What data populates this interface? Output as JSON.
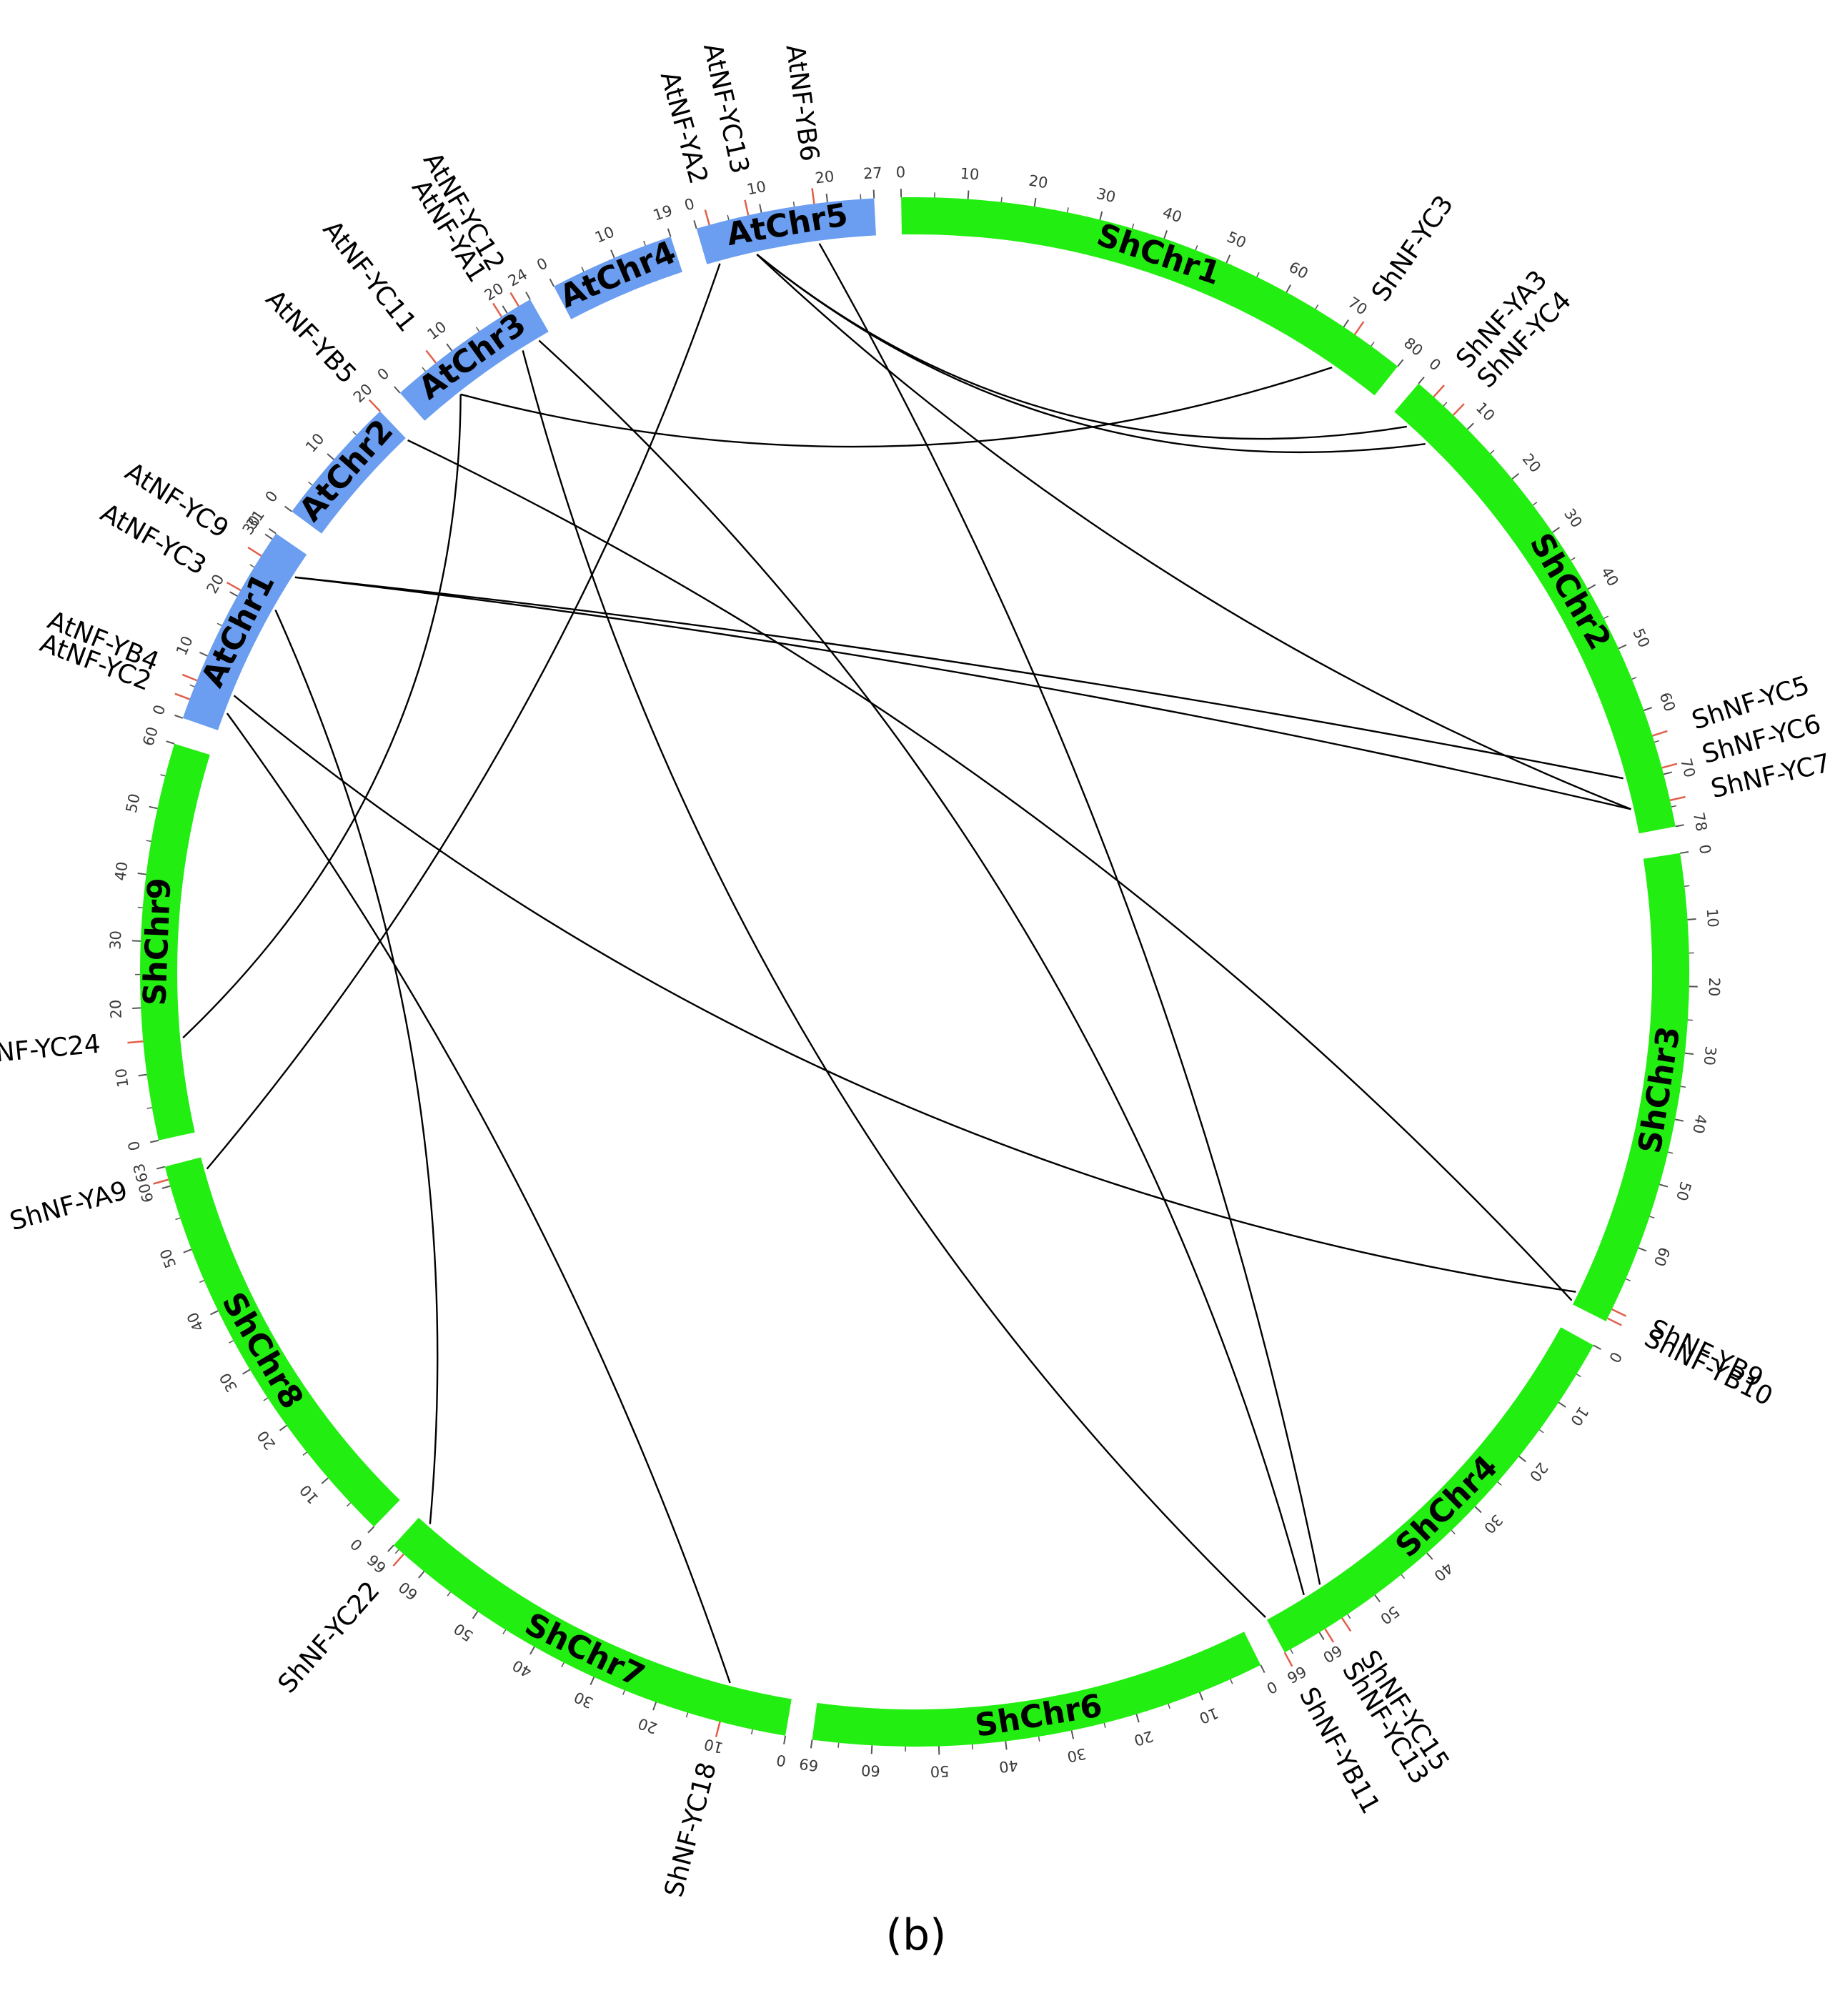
{
  "colors": {
    "sh": "#22ee11",
    "at": "#6b9ef0",
    "link": "#000000",
    "gene_tick": "#e0604a",
    "tick": "#555555"
  },
  "caption": "(b)",
  "chromosomes": [
    {
      "id": "ShChr1",
      "label": "ShChr1",
      "len": 80,
      "group": "sh",
      "ticks": [
        0,
        10,
        20,
        30,
        40,
        50,
        60,
        70,
        80
      ]
    },
    {
      "id": "ShChr2",
      "label": "ShChr2",
      "len": 78,
      "group": "sh",
      "ticks": [
        0,
        10,
        20,
        30,
        40,
        50,
        60,
        70,
        78
      ]
    },
    {
      "id": "ShChr3",
      "label": "ShChr3",
      "len": 72,
      "group": "sh",
      "ticks": [
        0,
        10,
        20,
        30,
        40,
        50,
        60
      ]
    },
    {
      "id": "ShChr4",
      "label": "ShChr4",
      "len": 66,
      "group": "sh",
      "ticks": [
        0,
        10,
        20,
        30,
        40,
        50,
        60,
        66
      ]
    },
    {
      "id": "ShChr6",
      "label": "ShChr6",
      "len": 69,
      "group": "sh",
      "ticks": [
        0,
        10,
        20,
        30,
        40,
        50,
        60,
        69
      ]
    },
    {
      "id": "ShChr7",
      "label": "ShChr7",
      "len": 66,
      "group": "sh",
      "ticks": [
        0,
        10,
        20,
        30,
        40,
        50,
        60,
        66
      ]
    },
    {
      "id": "ShChr8",
      "label": "ShChr8",
      "len": 63,
      "group": "sh",
      "ticks": [
        0,
        10,
        20,
        30,
        40,
        50,
        60,
        63
      ]
    },
    {
      "id": "ShChr9",
      "label": "ShChr9",
      "len": 60,
      "group": "sh",
      "ticks": [
        0,
        10,
        20,
        30,
        40,
        50,
        60
      ]
    },
    {
      "id": "AtChr1",
      "label": "AtChr1",
      "len": 31,
      "group": "at",
      "ticks": [
        0,
        10,
        20,
        30,
        31
      ]
    },
    {
      "id": "AtChr2",
      "label": "AtChr2",
      "len": 20,
      "group": "at",
      "ticks": [
        0,
        10,
        20
      ]
    },
    {
      "id": "AtChr3",
      "label": "AtChr3",
      "len": 24,
      "group": "at",
      "ticks": [
        0,
        10,
        20,
        24
      ]
    },
    {
      "id": "AtChr4",
      "label": "AtChr4",
      "len": 19,
      "group": "at",
      "ticks": [
        0,
        10,
        19
      ]
    },
    {
      "id": "AtChr5",
      "label": "AtChr5",
      "len": 27,
      "group": "at",
      "ticks": [
        0,
        10,
        20,
        27
      ]
    }
  ],
  "genes": [
    {
      "id": "ShNF-YC3",
      "label": "ShNF-YC3",
      "chr": "ShChr1",
      "pos": 72
    },
    {
      "id": "ShNF-YA3",
      "label": "ShNF-YA3",
      "chr": "ShChr2",
      "pos": 3
    },
    {
      "id": "ShNF-YC4",
      "label": "ShNF-YC4",
      "chr": "ShChr2",
      "pos": 7
    },
    {
      "id": "ShNF-YC5",
      "label": "ShNF-YC5",
      "chr": "ShChr2",
      "pos": 64
    },
    {
      "id": "ShNF-YC6",
      "label": "ShNF-YC6",
      "chr": "ShChr2",
      "pos": 69
    },
    {
      "id": "ShNF-YC7",
      "label": "ShNF-YC7",
      "chr": "ShChr2",
      "pos": 74
    },
    {
      "id": "ShNF-YB9",
      "label": "ShNF-YB9",
      "chr": "ShChr3",
      "pos": 70
    },
    {
      "id": "ShNF-YB10",
      "label": "ShNF-YB10",
      "chr": "ShChr3",
      "pos": 71.5
    },
    {
      "id": "ShNF-YC13",
      "label": "ShNF-YC13",
      "chr": "ShChr4",
      "pos": 59
    },
    {
      "id": "ShNF-YC15",
      "label": "ShNF-YC15",
      "chr": "ShChr4",
      "pos": 56
    },
    {
      "id": "ShNF-YB11",
      "label": "ShNF-YB11",
      "chr": "ShChr4",
      "pos": 66
    },
    {
      "id": "ShNF-YC18",
      "label": "ShNF-YC18",
      "chr": "ShChr7",
      "pos": 10
    },
    {
      "id": "ShNF-YC22",
      "label": "ShNF-YC22",
      "chr": "ShChr7",
      "pos": 64
    },
    {
      "id": "ShNF-YA9",
      "label": "ShNF-YA9",
      "chr": "ShChr8",
      "pos": 61
    },
    {
      "id": "ShNF-YC24",
      "label": "ShNF-YC24",
      "chr": "ShChr9",
      "pos": 15
    },
    {
      "id": "AtNF-YC2",
      "label": "AtNF-YC2",
      "chr": "AtChr1",
      "pos": 3
    },
    {
      "id": "AtNF-YB4",
      "label": "AtNF-YB4",
      "chr": "AtChr1",
      "pos": 6
    },
    {
      "id": "AtNF-YC3",
      "label": "AtNF-YC3",
      "chr": "AtChr1",
      "pos": 21
    },
    {
      "id": "AtNF-YC9",
      "label": "AtNF-YC9",
      "chr": "AtChr1",
      "pos": 27
    },
    {
      "id": "AtNF-YB5",
      "label": "AtNF-YB5",
      "chr": "AtChr2",
      "pos": 20
    },
    {
      "id": "AtNF-YC11",
      "label": "AtNF-YC11",
      "chr": "AtChr3",
      "pos": 7
    },
    {
      "id": "AtNF-YA1",
      "label": "AtNF-YA1",
      "chr": "AtChr3",
      "pos": 19
    },
    {
      "id": "AtNF-YC12",
      "label": "AtNF-YC12",
      "chr": "AtChr3",
      "pos": 22
    },
    {
      "id": "AtNF-YA2",
      "label": "AtNF-YA2",
      "chr": "AtChr5",
      "pos": 2
    },
    {
      "id": "AtNF-YC13",
      "label": "AtNF-YC13",
      "chr": "AtChr5",
      "pos": 8
    },
    {
      "id": "AtNF-YB6",
      "label": "AtNF-YB6",
      "chr": "AtChr5",
      "pos": 18
    }
  ],
  "links": [
    [
      "AtNF-YC13",
      "ShNF-YC4"
    ],
    [
      "AtNF-YC13",
      "ShNF-YA3"
    ],
    [
      "AtNF-YC13",
      "ShNF-YC7"
    ],
    [
      "AtNF-YB6",
      "ShNF-YC15"
    ],
    [
      "AtNF-YA2",
      "ShNF-YA9"
    ],
    [
      "AtNF-YC12",
      "ShNF-YC13"
    ],
    [
      "AtNF-YA1",
      "ShNF-YB11"
    ],
    [
      "AtNF-YC11",
      "ShNF-YC3"
    ],
    [
      "AtNF-YC11",
      "ShNF-YC24"
    ],
    [
      "AtNF-YB5",
      "ShNF-YB10"
    ],
    [
      "AtNF-YC9",
      "ShNF-YC6"
    ],
    [
      "AtNF-YC9",
      "ShNF-YC7"
    ],
    [
      "AtNF-YC3",
      "ShNF-YC22"
    ],
    [
      "AtNF-YB4",
      "ShNF-YB9"
    ],
    [
      "AtNF-YC2",
      "ShNF-YC18"
    ]
  ]
}
